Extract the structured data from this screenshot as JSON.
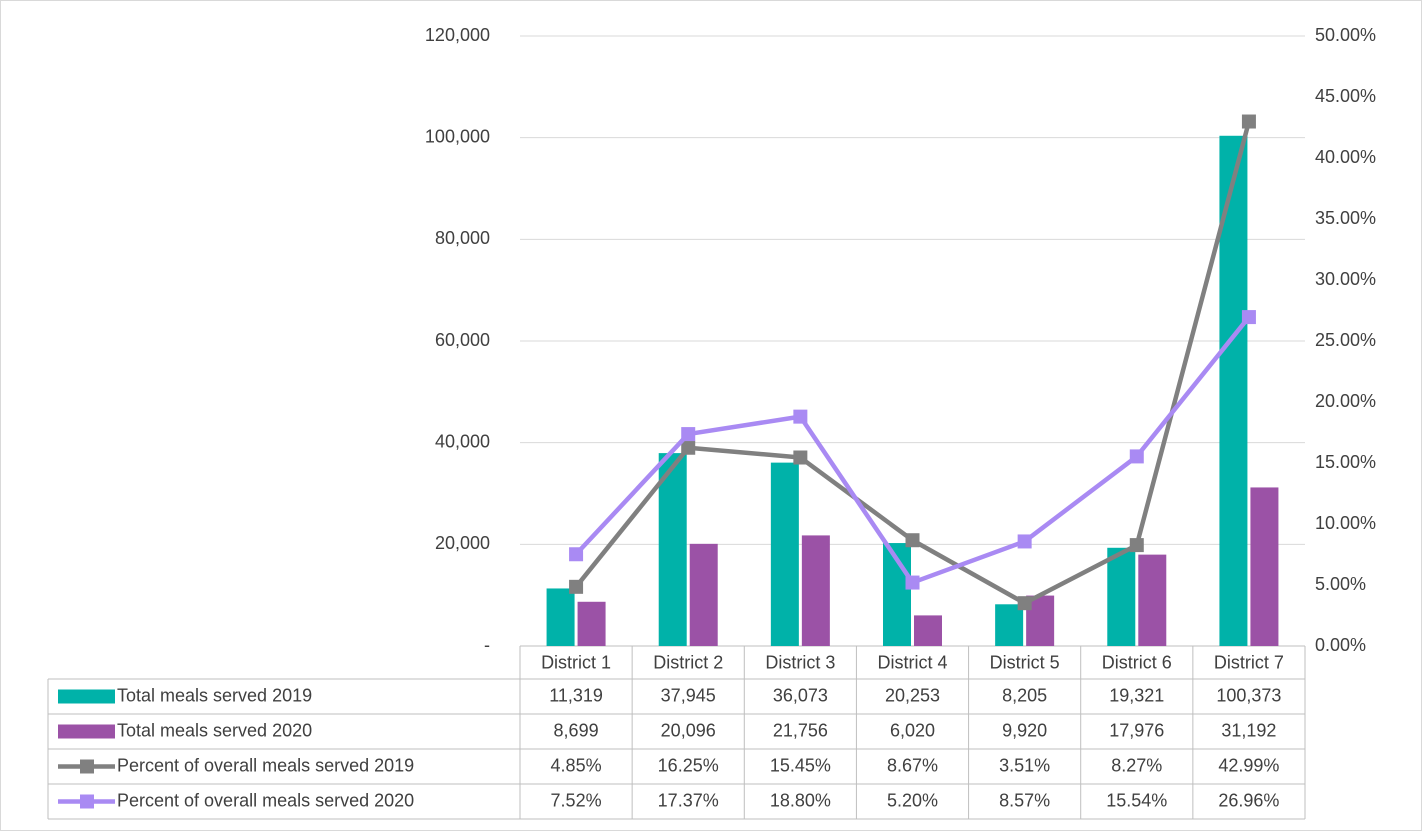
{
  "chart_data": {
    "type": "bar",
    "categories": [
      "District 1",
      "District 2",
      "District 3",
      "District 4",
      "District 5",
      "District 6",
      "District 7"
    ],
    "series": [
      {
        "name": "Total meals served 2019",
        "type": "bar",
        "color": "#00b2a9",
        "values": [
          11319,
          37945,
          36073,
          20253,
          8205,
          19321,
          100373
        ],
        "value_labels": [
          "11,319",
          "37,945",
          "36,073",
          "20,253",
          "8,205",
          "19,321",
          "100,373"
        ]
      },
      {
        "name": "Total meals served 2020",
        "type": "bar",
        "color": "#9b52a6",
        "values": [
          8699,
          20096,
          21756,
          6020,
          9920,
          17976,
          31192
        ],
        "value_labels": [
          "8,699",
          "20,096",
          "21,756",
          "6,020",
          "9,920",
          "17,976",
          "31,192"
        ]
      },
      {
        "name": "Percent of overall meals served 2019",
        "type": "line",
        "axis": "y2",
        "color": "#808080",
        "values": [
          4.85,
          16.25,
          15.45,
          8.67,
          3.51,
          8.27,
          42.99
        ],
        "value_labels": [
          "4.85%",
          "16.25%",
          "15.45%",
          "8.67%",
          "3.51%",
          "8.27%",
          "42.99%"
        ]
      },
      {
        "name": "Percent of overall meals served 2020",
        "type": "line",
        "axis": "y2",
        "color": "#a98af3",
        "values": [
          7.52,
          17.37,
          18.8,
          5.2,
          8.57,
          15.54,
          26.96
        ],
        "value_labels": [
          "7.52%",
          "17.37%",
          "18.80%",
          "5.20%",
          "8.57%",
          "15.54%",
          "26.96%"
        ]
      }
    ],
    "ylim": [
      0,
      120000
    ],
    "yticks": [
      {
        "value": 0,
        "label": "-"
      },
      {
        "value": 20000,
        "label": "20,000"
      },
      {
        "value": 40000,
        "label": "40,000"
      },
      {
        "value": 60000,
        "label": "60,000"
      },
      {
        "value": 80000,
        "label": "80,000"
      },
      {
        "value": 100000,
        "label": "100,000"
      },
      {
        "value": 120000,
        "label": "120,000"
      }
    ],
    "y2lim": [
      0,
      50
    ],
    "y2ticks": [
      {
        "value": 0,
        "label": "0.00%"
      },
      {
        "value": 5,
        "label": "5.00%"
      },
      {
        "value": 10,
        "label": "10.00%"
      },
      {
        "value": 15,
        "label": "15.00%"
      },
      {
        "value": 20,
        "label": "20.00%"
      },
      {
        "value": 25,
        "label": "25.00%"
      },
      {
        "value": 30,
        "label": "30.00%"
      },
      {
        "value": 35,
        "label": "35.00%"
      },
      {
        "value": 40,
        "label": "40.00%"
      },
      {
        "value": 45,
        "label": "45.00%"
      },
      {
        "value": 50,
        "label": "50.00%"
      }
    ],
    "grid": true,
    "data_table": true
  }
}
